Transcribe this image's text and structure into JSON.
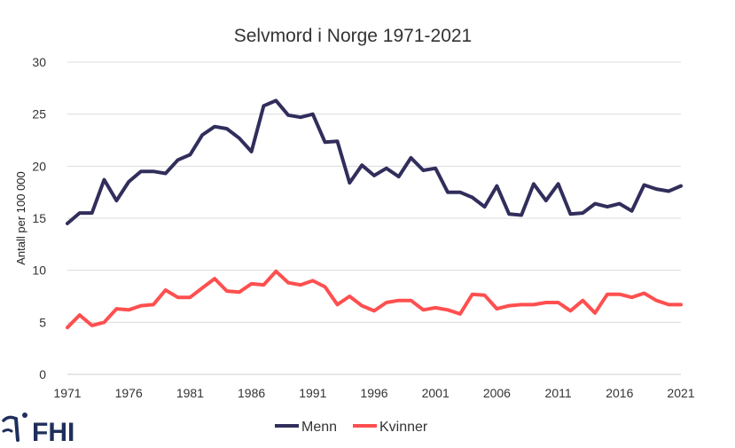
{
  "chart_data": {
    "type": "line",
    "title": "Selvmord i Norge 1971-2021",
    "xlabel": "",
    "ylabel": "Antall per 100 000",
    "ylim": [
      0,
      30
    ],
    "yticks": [
      0,
      5,
      10,
      15,
      20,
      25,
      30
    ],
    "xlim": [
      1971,
      2021
    ],
    "xticks": [
      1971,
      1976,
      1981,
      1986,
      1991,
      1996,
      2001,
      2006,
      2011,
      2016,
      2021
    ],
    "grid": true,
    "legend": "bottom",
    "x": [
      1971,
      1972,
      1973,
      1974,
      1975,
      1976,
      1977,
      1978,
      1979,
      1980,
      1981,
      1982,
      1983,
      1984,
      1985,
      1986,
      1987,
      1988,
      1989,
      1990,
      1991,
      1992,
      1993,
      1994,
      1995,
      1996,
      1997,
      1998,
      1999,
      2000,
      2001,
      2002,
      2003,
      2004,
      2005,
      2006,
      2007,
      2008,
      2009,
      2010,
      2011,
      2012,
      2013,
      2014,
      2015,
      2016,
      2017,
      2018,
      2019,
      2020,
      2021
    ],
    "series": [
      {
        "name": "Menn",
        "color": "#312e5c",
        "values": [
          14.5,
          15.5,
          15.5,
          18.7,
          16.7,
          18.5,
          19.5,
          19.5,
          19.3,
          20.6,
          21.1,
          23.0,
          23.8,
          23.6,
          22.7,
          21.4,
          25.8,
          26.3,
          24.9,
          24.7,
          25.0,
          22.3,
          22.4,
          18.4,
          20.1,
          19.1,
          19.8,
          19.0,
          20.8,
          19.6,
          19.8,
          17.5,
          17.5,
          17.0,
          16.1,
          18.1,
          15.4,
          15.3,
          18.3,
          16.7,
          18.3,
          15.4,
          15.5,
          16.4,
          16.1,
          16.4,
          15.7,
          18.2,
          17.8,
          17.6,
          18.1
        ]
      },
      {
        "name": "Kvinner",
        "color": "#ff4f4f",
        "values": [
          4.5,
          5.7,
          4.7,
          5.0,
          6.3,
          6.2,
          6.6,
          6.7,
          8.1,
          7.4,
          7.4,
          8.3,
          9.2,
          8.0,
          7.9,
          8.7,
          8.6,
          9.9,
          8.8,
          8.6,
          9.0,
          8.4,
          6.7,
          7.5,
          6.6,
          6.1,
          6.9,
          7.1,
          7.1,
          6.2,
          6.4,
          6.2,
          5.8,
          7.7,
          7.6,
          6.3,
          6.6,
          6.7,
          6.7,
          6.9,
          6.9,
          6.1,
          7.1,
          5.9,
          7.7,
          7.7,
          7.4,
          7.8,
          7.1,
          6.7,
          6.7
        ]
      }
    ]
  },
  "logo": {
    "text": "FHI",
    "color": "#1f2f5c"
  }
}
